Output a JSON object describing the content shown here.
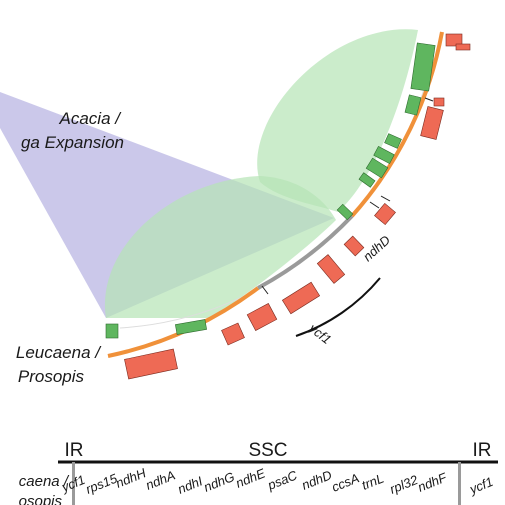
{
  "colors": {
    "expansion_wedge": "#b9b6e3",
    "homology_ribbon": "#b5e4b5",
    "ring_orange": "#f0913a",
    "ring_gray": "#9a9a9a",
    "gene_green": "#5fb65f",
    "gene_red": "#ee6a55",
    "axis_black": "#111111"
  },
  "labels": {
    "expansion_line1": "Acacia /",
    "expansion_line2": "ga Expansion",
    "lineage_line1": "Leucaena /",
    "lineage_line2": "Prosopis",
    "arc_gene_1": "ndhD",
    "arc_gene_2": "ycf1"
  },
  "map": {
    "regions": [
      "IR",
      "SSC",
      "IR"
    ],
    "row_label_line1": "caena /",
    "row_label_line2": "osopis",
    "genes": [
      "ycf1",
      "rps15",
      "ndhH",
      "ndhA",
      "ndhI",
      "ndhG",
      "ndhE",
      "psaC",
      "ndhD",
      "ccsA",
      "trnL",
      "rpl32",
      "ndhF",
      "ycf1"
    ]
  }
}
